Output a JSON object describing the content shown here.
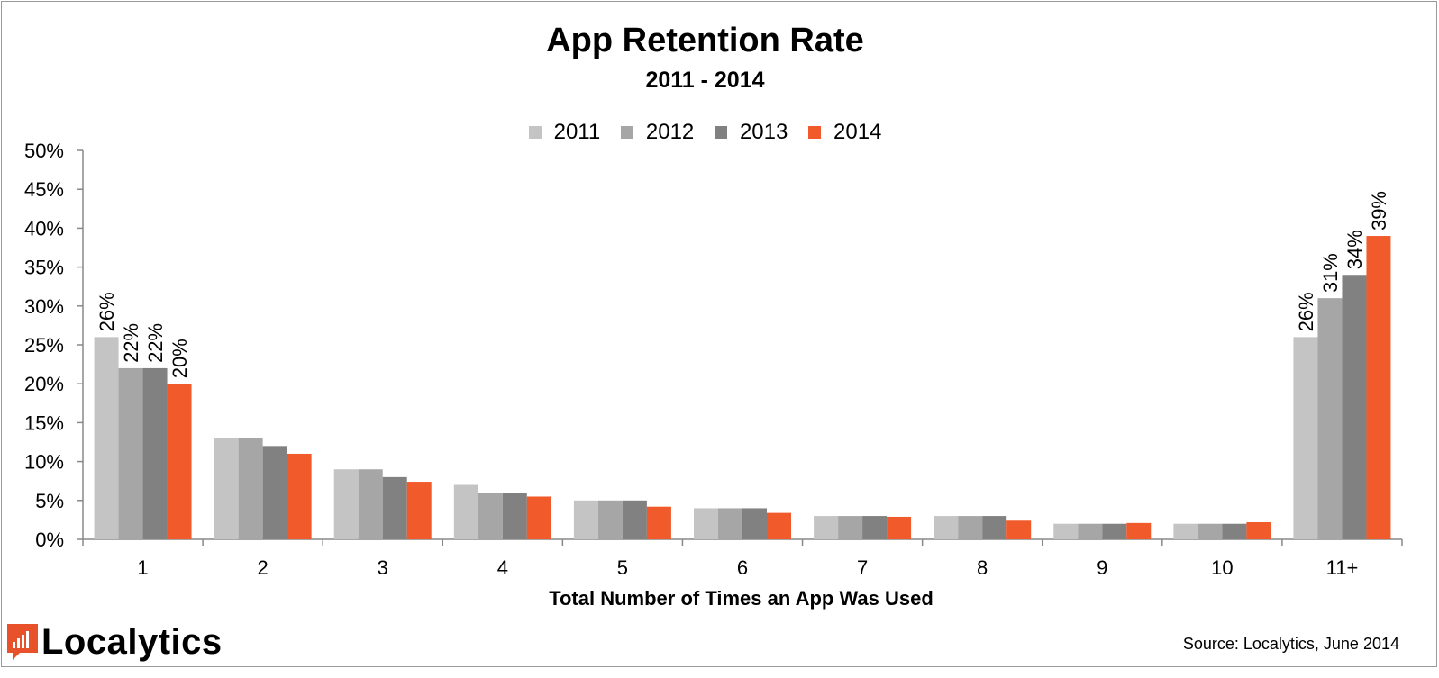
{
  "chart_data": {
    "type": "bar",
    "title": "App Retention Rate",
    "subtitle": "2011 - 2014",
    "xlabel": "Total Number of Times an App Was Used",
    "ylabel": "",
    "ylim": [
      0,
      50
    ],
    "y_ticks": [
      "0%",
      "5%",
      "10%",
      "15%",
      "20%",
      "25%",
      "30%",
      "35%",
      "40%",
      "45%",
      "50%"
    ],
    "y_tick_values": [
      0,
      5,
      10,
      15,
      20,
      25,
      30,
      35,
      40,
      45,
      50
    ],
    "categories": [
      "1",
      "2",
      "3",
      "4",
      "5",
      "6",
      "7",
      "8",
      "9",
      "10",
      "11+"
    ],
    "legend_position": "top-center",
    "grid": false,
    "series": [
      {
        "name": "2011",
        "color": "#c4c4c4",
        "values": [
          26,
          13,
          9,
          7,
          5,
          4,
          3,
          3,
          2,
          2,
          26
        ],
        "data_labels": [
          "26%",
          "",
          "",
          "",
          "",
          "",
          "",
          "",
          "",
          "",
          "26%"
        ]
      },
      {
        "name": "2012",
        "color": "#a6a6a6",
        "values": [
          22,
          13,
          9,
          6,
          5,
          4,
          3,
          3,
          2,
          2,
          31
        ],
        "data_labels": [
          "22%",
          "",
          "",
          "",
          "",
          "",
          "",
          "",
          "",
          "",
          "31%"
        ]
      },
      {
        "name": "2013",
        "color": "#818181",
        "values": [
          22,
          12,
          8,
          6,
          5,
          4,
          3,
          3,
          2,
          2,
          34
        ],
        "data_labels": [
          "22%",
          "",
          "",
          "",
          "",
          "",
          "",
          "",
          "",
          "",
          "34%"
        ]
      },
      {
        "name": "2014",
        "color": "#f15a2b",
        "values": [
          20,
          11,
          7.4,
          5.5,
          4.2,
          3.4,
          2.9,
          2.4,
          2.1,
          2.2,
          39
        ],
        "data_labels": [
          "20%",
          "",
          "",
          "",
          "",
          "",
          "",
          "",
          "",
          "",
          "39%"
        ]
      }
    ]
  },
  "footer": {
    "logo_text": "Localytics",
    "source": "Source: Localytics, June 2014"
  },
  "colors": {
    "accent": "#f15a2b",
    "axis": "#888888"
  }
}
